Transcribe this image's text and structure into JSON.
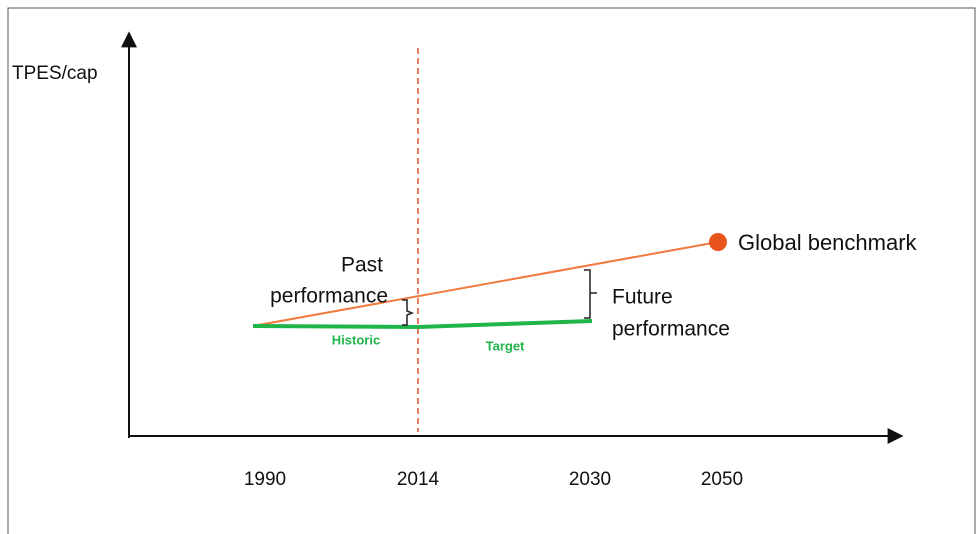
{
  "axis": {
    "y_label": "TPES/cap",
    "x_labels": [
      "1990",
      "2014",
      "2030",
      "2050"
    ]
  },
  "annotations": {
    "past_performance": [
      "Past",
      "performance"
    ],
    "future_performance": [
      "Future",
      "performance"
    ],
    "global_benchmark": "Global benchmark"
  },
  "lines": {
    "historic": "Historic",
    "target": "Target"
  }
}
